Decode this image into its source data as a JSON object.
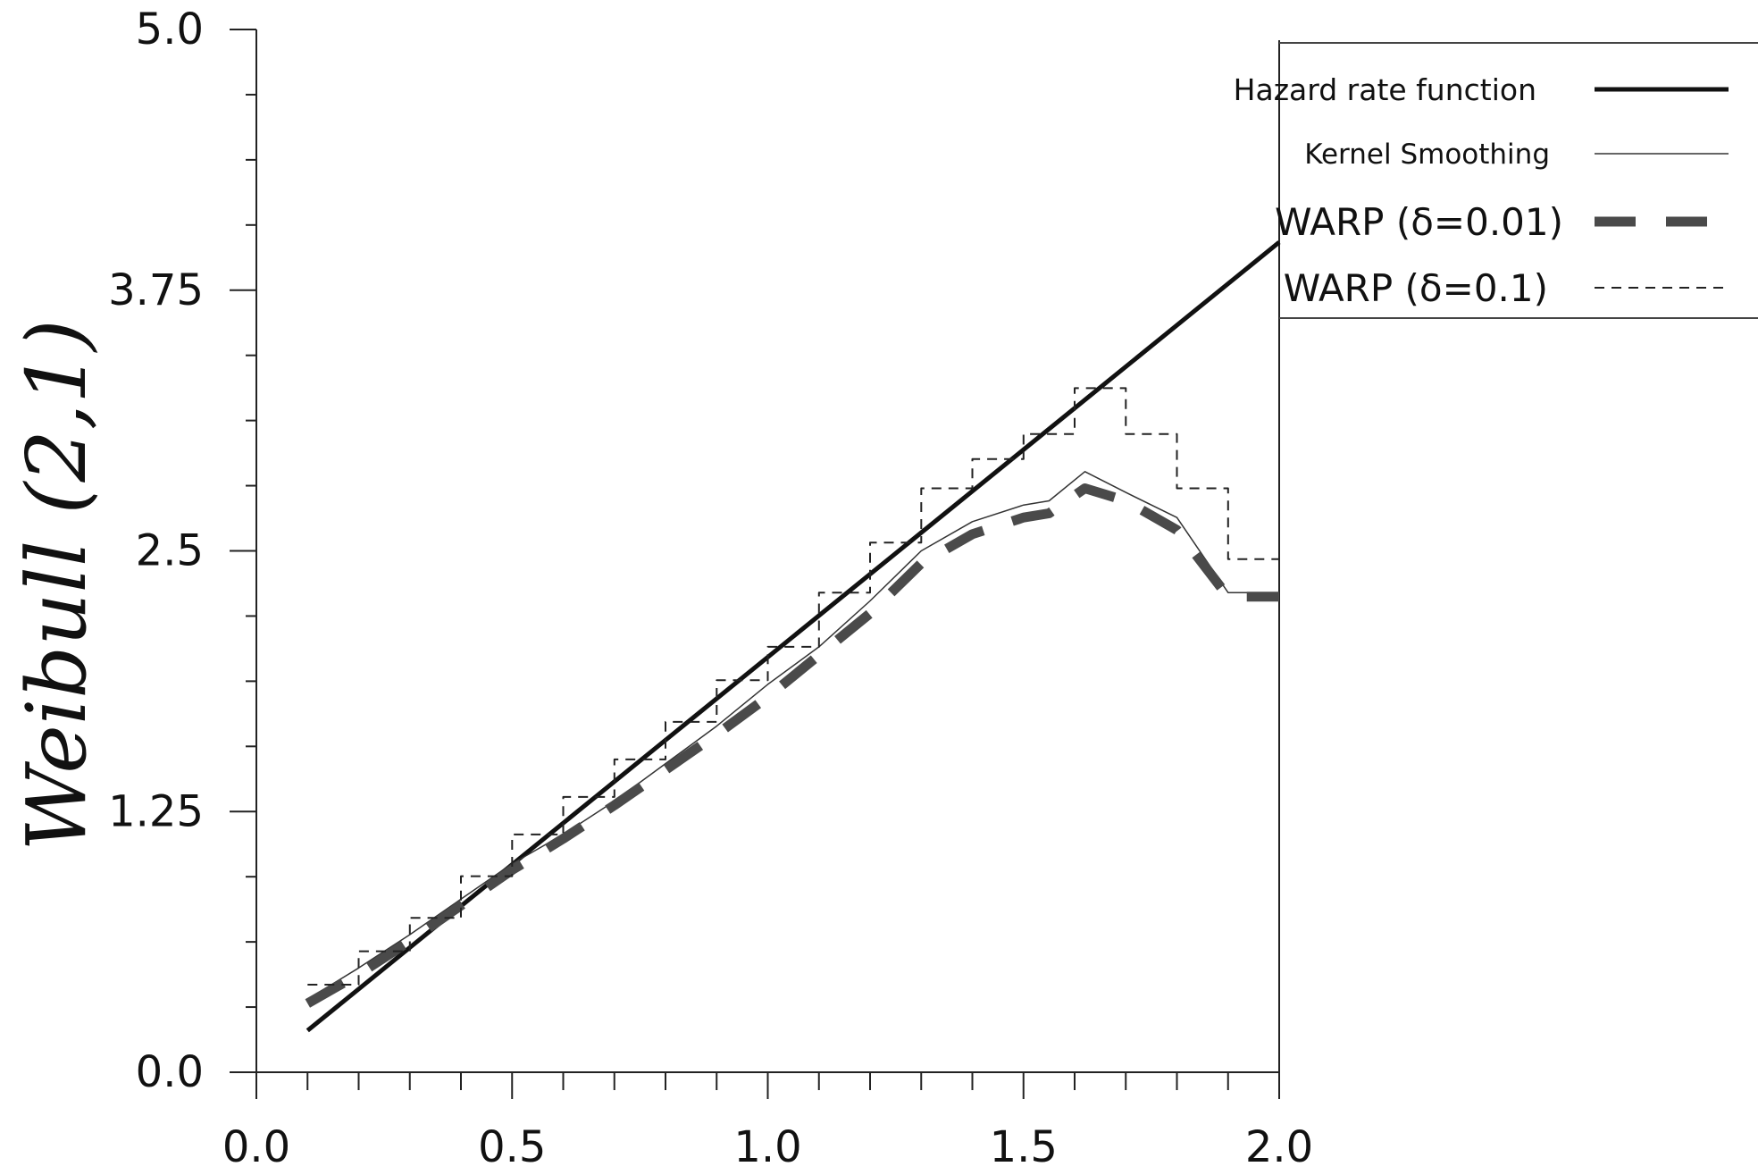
{
  "chart_data": {
    "type": "line",
    "title": "",
    "xlabel": "",
    "ylabel": "Weibull (2,1)",
    "xlim": [
      0.0,
      2.0
    ],
    "ylim": [
      0.0,
      5.0
    ],
    "x_ticks": [
      "0.0",
      "0.5",
      "1.0",
      "1.5",
      "2.0"
    ],
    "y_ticks": [
      "0.0",
      "1.25",
      "2.5",
      "3.75",
      "5.0"
    ],
    "grid": false,
    "legend_position": "top-right",
    "series": [
      {
        "name": "Hazard rate function",
        "style": "solid-thick",
        "x": [
          0.1,
          2.0
        ],
        "y": [
          0.2,
          3.98
        ]
      },
      {
        "name": "Kernel Smoothing",
        "style": "solid-thin",
        "x": [
          0.1,
          0.2,
          0.3,
          0.4,
          0.5,
          0.6,
          0.7,
          0.8,
          0.9,
          1.0,
          1.1,
          1.2,
          1.3,
          1.4,
          1.5,
          1.55,
          1.62,
          1.7,
          1.8,
          1.9,
          2.0
        ],
        "y": [
          0.35,
          0.5,
          0.66,
          0.83,
          1.0,
          1.14,
          1.3,
          1.48,
          1.66,
          1.86,
          2.04,
          2.26,
          2.5,
          2.64,
          2.72,
          2.74,
          2.88,
          2.78,
          2.66,
          2.3,
          2.3
        ]
      },
      {
        "name": "WARP (δ=0.01)",
        "style": "dashed-thick",
        "x": [
          0.1,
          0.2,
          0.3,
          0.4,
          0.5,
          0.6,
          0.7,
          0.8,
          0.9,
          1.0,
          1.1,
          1.2,
          1.3,
          1.4,
          1.5,
          1.55,
          1.62,
          1.7,
          1.8,
          1.9,
          2.0
        ],
        "y": [
          0.33,
          0.47,
          0.63,
          0.8,
          0.97,
          1.12,
          1.28,
          1.45,
          1.62,
          1.8,
          2.0,
          2.2,
          2.44,
          2.58,
          2.66,
          2.68,
          2.8,
          2.74,
          2.6,
          2.28,
          2.28
        ]
      },
      {
        "name": "WARP (δ=0.1)",
        "style": "dashed-thin",
        "x": [
          0.1,
          0.2,
          0.2,
          0.3,
          0.3,
          0.4,
          0.4,
          0.5,
          0.5,
          0.6,
          0.6,
          0.7,
          0.7,
          0.8,
          0.8,
          0.9,
          0.9,
          1.0,
          1.0,
          1.1,
          1.1,
          1.2,
          1.2,
          1.3,
          1.3,
          1.4,
          1.4,
          1.5,
          1.5,
          1.6,
          1.6,
          1.7,
          1.7,
          1.8,
          1.8,
          1.9,
          1.9,
          2.0
        ],
        "y": [
          0.42,
          0.42,
          0.58,
          0.58,
          0.74,
          0.74,
          0.94,
          0.94,
          1.14,
          1.14,
          1.32,
          1.32,
          1.5,
          1.5,
          1.68,
          1.68,
          1.88,
          1.88,
          2.04,
          2.04,
          2.3,
          2.3,
          2.54,
          2.54,
          2.8,
          2.8,
          2.94,
          2.94,
          3.06,
          3.06,
          3.28,
          3.28,
          3.06,
          3.06,
          2.8,
          2.8,
          2.46,
          2.46
        ]
      }
    ]
  }
}
